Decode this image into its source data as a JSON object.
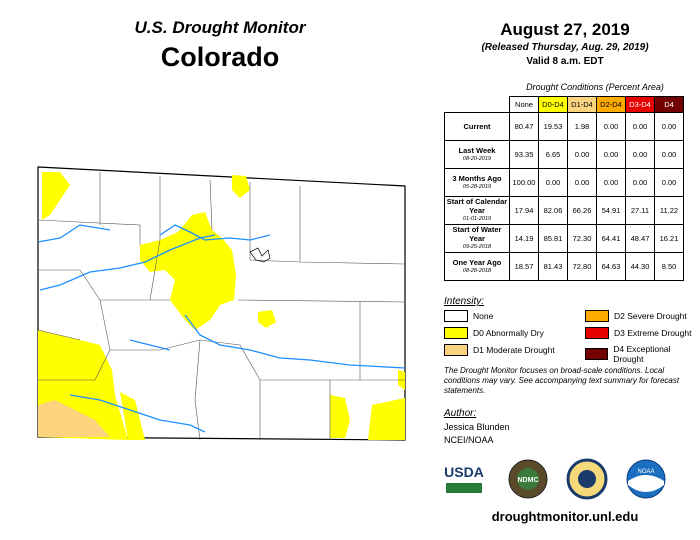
{
  "header": {
    "title": "U.S. Drought Monitor",
    "state": "Colorado",
    "date": "August 27, 2019",
    "released": "(Released Thursday, Aug. 29, 2019)",
    "valid": "Valid 8 a.m. EDT"
  },
  "table": {
    "caption": "Drought Conditions (Percent Area)",
    "columns": [
      {
        "label": "None",
        "color": "#ffffff",
        "text": "#000000"
      },
      {
        "label": "D0-D4",
        "color": "#ffff00",
        "text": "#000000"
      },
      {
        "label": "D1-D4",
        "color": "#fcd37f",
        "text": "#000000"
      },
      {
        "label": "D2-D4",
        "color": "#ffaa00",
        "text": "#000000"
      },
      {
        "label": "D3-D4",
        "color": "#e60000",
        "text": "#ffffff"
      },
      {
        "label": "D4",
        "color": "#730000",
        "text": "#ffffff"
      }
    ],
    "rows": [
      {
        "label": "Current",
        "values": [
          "80.47",
          "19.53",
          "1.98",
          "0.00",
          "0.00",
          "0.00"
        ]
      },
      {
        "label": "Last Week",
        "date": "08-20-2019",
        "values": [
          "93.35",
          "6.65",
          "0.00",
          "0.00",
          "0.00",
          "0.00"
        ]
      },
      {
        "label": "3 Months Ago",
        "date": "05-28-2019",
        "values": [
          "100.00",
          "0.00",
          "0.00",
          "0.00",
          "0.00",
          "0.00"
        ]
      },
      {
        "label": "Start of Calendar Year",
        "date": "01-01-2019",
        "values": [
          "17.94",
          "82.06",
          "66.26",
          "54.91",
          "27.11",
          "11.22"
        ]
      },
      {
        "label": "Start of Water Year",
        "date": "09-25-2018",
        "values": [
          "14.19",
          "85.81",
          "72.30",
          "64.41",
          "48.47",
          "16.21"
        ]
      },
      {
        "label": "One Year Ago",
        "date": "08-28-2018",
        "values": [
          "18.57",
          "81.43",
          "72.80",
          "64.63",
          "44.30",
          "8.50"
        ]
      }
    ]
  },
  "legend": {
    "title": "Intensity:",
    "items": [
      {
        "label": "None",
        "color": "#ffffff"
      },
      {
        "label": "D0 Abnormally Dry",
        "color": "#ffff00"
      },
      {
        "label": "D1 Moderate Drought",
        "color": "#fcd37f"
      },
      {
        "label": "D2 Severe Drought",
        "color": "#ffaa00"
      },
      {
        "label": "D3 Extreme Drought",
        "color": "#e60000"
      },
      {
        "label": "D4 Exceptional Drought",
        "color": "#730000"
      }
    ]
  },
  "note": "The Drought Monitor focuses on broad-scale conditions. Local conditions may vary. See accompanying text summary for forecast statements.",
  "author": {
    "title": "Author:",
    "name": "Jessica Blunden",
    "org": "NCEI/NOAA"
  },
  "logos": [
    "USDA",
    "NDMC",
    "NOAA"
  ],
  "url": "droughtmonitor.unl.edu"
}
